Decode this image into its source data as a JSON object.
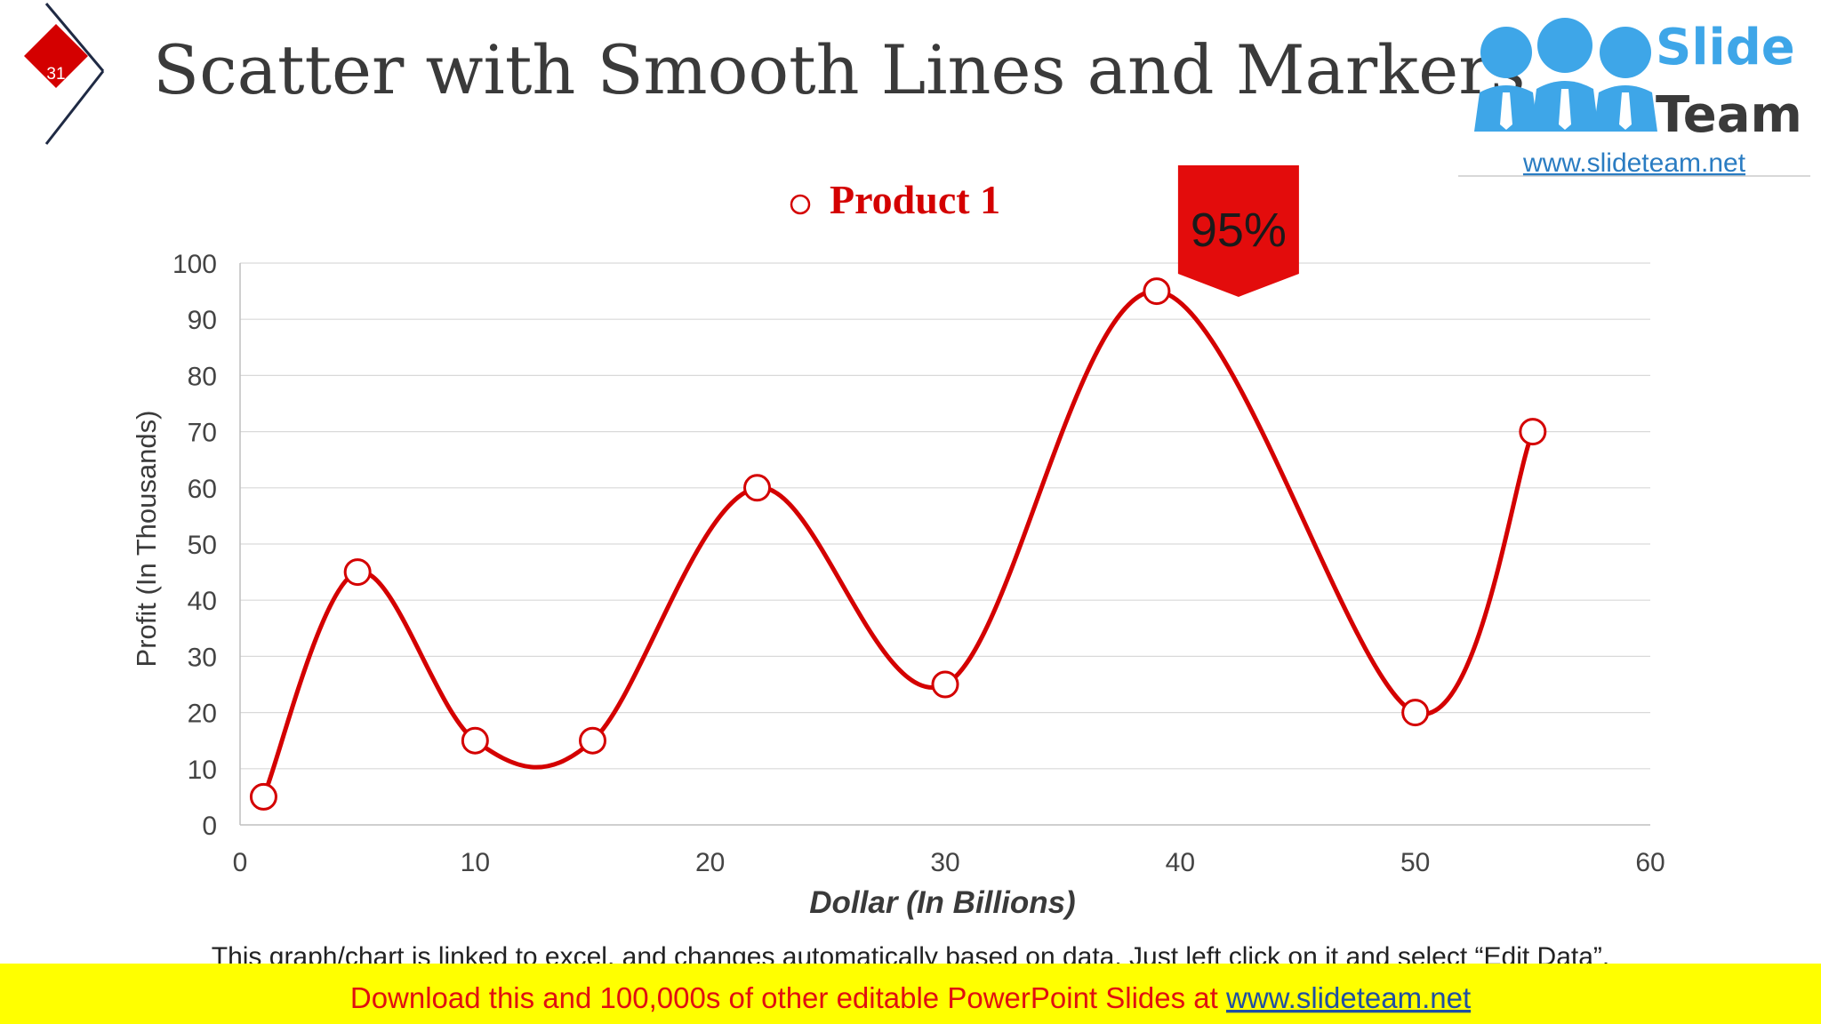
{
  "slide": {
    "number": "31",
    "title": "Scatter with Smooth Lines and Markers",
    "note": "This graph/chart is linked to excel, and changes automatically based on data. Just left click on it and select “Edit Data”.",
    "footer_text": "Download this and 100,000s of other editable PowerPoint Slides at ",
    "footer_link": "www.slideteam.net"
  },
  "logo": {
    "word1": "Slide",
    "word2": "Team",
    "url": "www.slideteam.net"
  },
  "callout": {
    "label": "95%"
  },
  "colors": {
    "accent": "#d40000",
    "title": "#3a3a3a",
    "footer_bg": "#ffff00",
    "footer_text": "#e01010",
    "logo_blue": "#3ea6e8",
    "link_blue": "#2a7cc2",
    "grid": "#d9d9d9",
    "axis_text": "#444444"
  },
  "chart_data": {
    "type": "scatter",
    "series": [
      {
        "name": "Product 1",
        "x": [
          1,
          5,
          10,
          15,
          22,
          30,
          39,
          50,
          55
        ],
        "y": [
          5,
          45,
          15,
          15,
          60,
          25,
          95,
          20,
          70
        ]
      }
    ],
    "xlabel": "Dollar (In Billions)",
    "ylabel": "Profit  (In Thousands)",
    "xlim": [
      0,
      60
    ],
    "ylim": [
      0,
      100
    ],
    "xticks": [
      "0",
      "10",
      "20",
      "30",
      "40",
      "50",
      "60"
    ],
    "yticks": [
      "0",
      "10",
      "20",
      "30",
      "40",
      "50",
      "60",
      "70",
      "80",
      "90",
      "100"
    ],
    "grid": true,
    "legend": "top",
    "smooth": true,
    "markers": true
  }
}
